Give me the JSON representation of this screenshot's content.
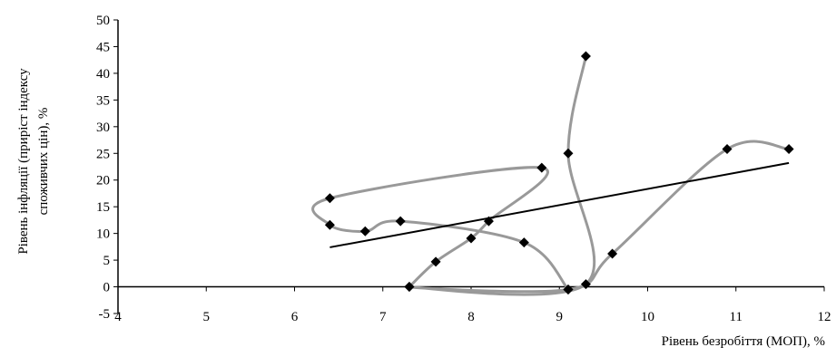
{
  "chart_data": {
    "type": "scatter",
    "title": "",
    "xlabel": "Рівень безробіття (МОП), %",
    "ylabel_lines": [
      "Рівень інфляції (приріст індексу",
      "споживчих цін), %"
    ],
    "xlim": [
      4,
      12
    ],
    "ylim": [
      -5,
      50
    ],
    "x_ticks": [
      4,
      5,
      6,
      7,
      8,
      9,
      10,
      11,
      12
    ],
    "y_ticks": [
      -5,
      0,
      5,
      10,
      15,
      20,
      25,
      30,
      35,
      40,
      45,
      50
    ],
    "grid": false,
    "legend": "none",
    "series": [
      {
        "marker": "diamond",
        "connected": "smooth",
        "points": [
          {
            "x": 9.3,
            "y": 43.2
          },
          {
            "x": 9.1,
            "y": 25.0
          },
          {
            "x": 9.3,
            "y": 0.5
          },
          {
            "x": 7.3,
            "y": 0.0
          },
          {
            "x": 9.1,
            "y": -0.5
          },
          {
            "x": 9.6,
            "y": 6.2
          },
          {
            "x": 10.9,
            "y": 25.8
          },
          {
            "x": 11.6,
            "y": 25.8
          }
        ]
      },
      {
        "marker": "diamond",
        "connected": "smooth",
        "points": [
          {
            "x": 9.1,
            "y": -0.5
          },
          {
            "x": 8.6,
            "y": 8.3
          },
          {
            "x": 7.2,
            "y": 12.3
          },
          {
            "x": 6.8,
            "y": 10.4
          },
          {
            "x": 6.4,
            "y": 11.6
          },
          {
            "x": 6.4,
            "y": 16.6
          },
          {
            "x": 8.8,
            "y": 22.3
          },
          {
            "x": 8.2,
            "y": 12.3
          },
          {
            "x": 8.0,
            "y": 9.1
          },
          {
            "x": 7.6,
            "y": 4.7
          },
          {
            "x": 7.3,
            "y": 0.0
          }
        ]
      }
    ],
    "trendline": {
      "x": [
        6.4,
        11.6
      ],
      "y": [
        7.4,
        23.2
      ]
    },
    "colors": {
      "curve": "#999999",
      "marker": "#000000",
      "trend": "#000000",
      "axis": "#000000"
    }
  }
}
